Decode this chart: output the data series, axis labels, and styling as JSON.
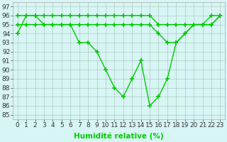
{
  "line1_main": {
    "x": [
      0,
      1,
      2,
      3,
      4,
      5,
      6,
      7,
      8,
      9,
      10,
      11,
      12,
      13,
      14,
      15,
      16,
      17,
      18,
      19,
      20,
      21,
      22,
      23
    ],
    "y": [
      94,
      96,
      96,
      95,
      95,
      95,
      95,
      93,
      93,
      92,
      90,
      88,
      87,
      89,
      91,
      86,
      87,
      89,
      93,
      94,
      95,
      95,
      96,
      96
    ]
  },
  "line2_top": {
    "x": [
      0,
      1,
      2,
      3,
      4,
      5,
      6,
      7,
      8,
      9,
      10,
      11,
      12,
      13,
      14,
      15,
      16,
      17,
      18,
      19,
      20,
      21,
      22,
      23
    ],
    "y": [
      96,
      96,
      96,
      96,
      96,
      96,
      96,
      96,
      96,
      96,
      96,
      96,
      96,
      96,
      96,
      96,
      95,
      95,
      95,
      95,
      95,
      95,
      95,
      96
    ]
  },
  "line3_mid": {
    "x": [
      0,
      1,
      2,
      3,
      4,
      5,
      6,
      7,
      8,
      9,
      10,
      11,
      12,
      13,
      14,
      15,
      16,
      17,
      18,
      19,
      20,
      21,
      22,
      23
    ],
    "y": [
      95,
      95,
      95,
      95,
      95,
      95,
      95,
      95,
      95,
      95,
      95,
      95,
      95,
      95,
      95,
      95,
      94,
      93,
      93,
      94,
      95,
      95,
      95,
      96
    ]
  },
  "line_color": "#00cc00",
  "marker": "+",
  "markersize": 4,
  "markeredgewidth": 1.2,
  "linewidth": 1.0,
  "bg_color": "#d8f5f5",
  "grid_color": "#aaccbb",
  "xlabel": "Humidité relative (%)",
  "ylabel_ticks": [
    85,
    86,
    87,
    88,
    89,
    90,
    91,
    92,
    93,
    94,
    95,
    96,
    97
  ],
  "ylim": [
    84.5,
    97.5
  ],
  "xlim": [
    -0.5,
    23.5
  ],
  "xlabel_fontsize": 7.5,
  "tick_fontsize": 6.5
}
